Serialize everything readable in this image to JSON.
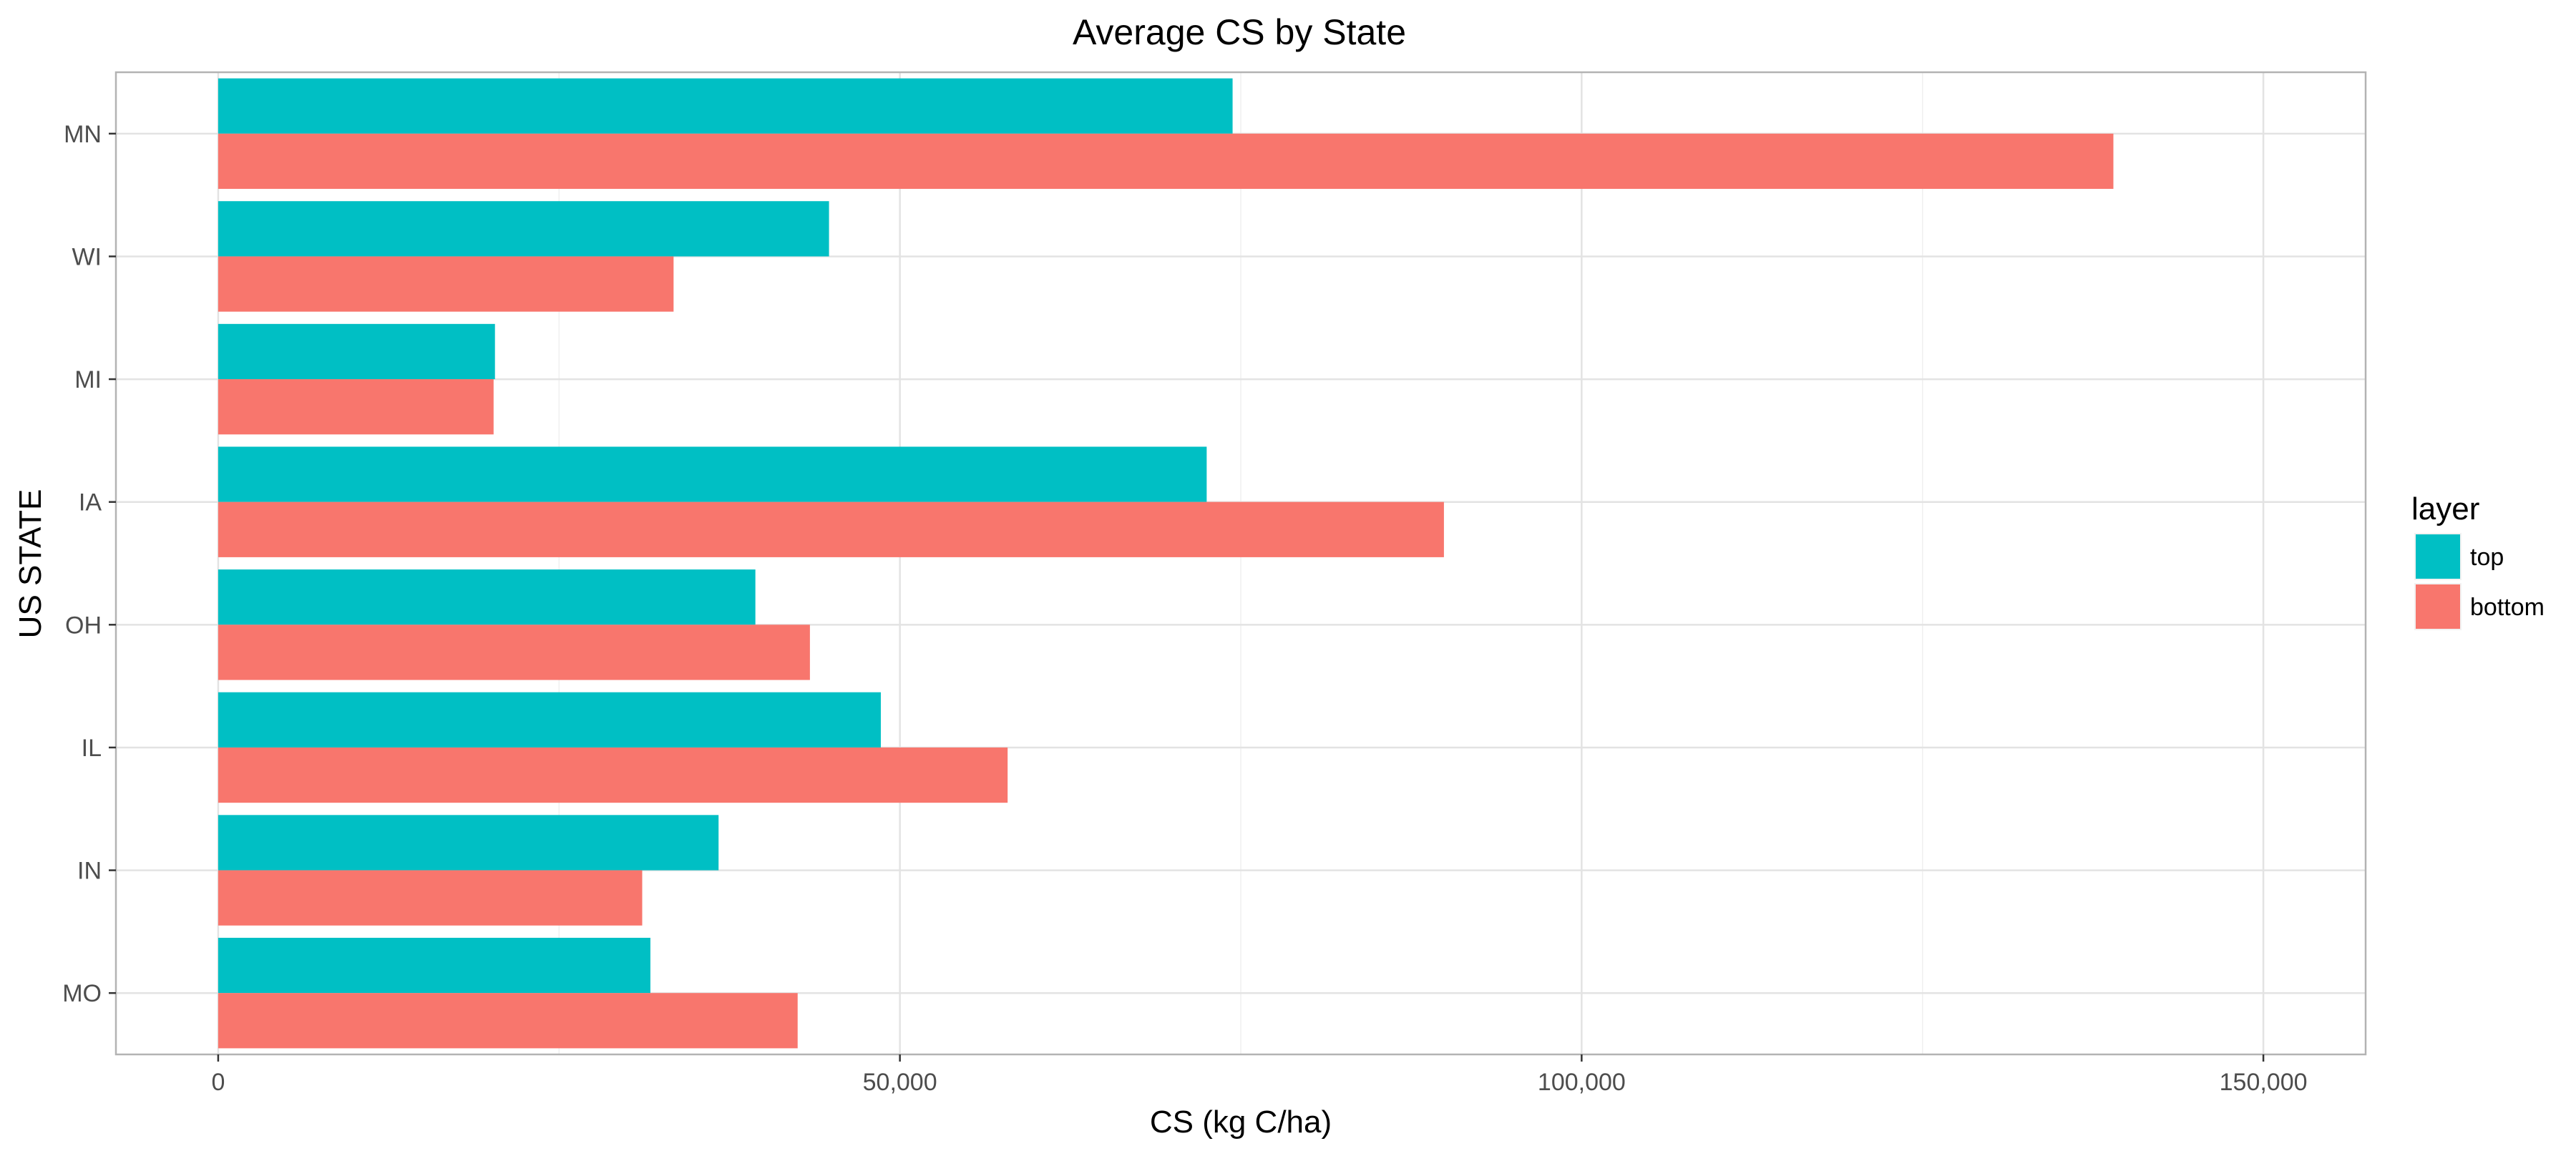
{
  "chart_data": {
    "type": "bar",
    "orientation": "horizontal",
    "title": "Average CS by State",
    "xlabel": "CS (kg C/ha)",
    "ylabel": "US STATE",
    "categories": [
      "MN",
      "WI",
      "MI",
      "IA",
      "OH",
      "IL",
      "IN",
      "MO"
    ],
    "series": [
      {
        "name": "top",
        "color": "#00BFC4",
        "values": [
          74400,
          44800,
          20300,
          72500,
          39400,
          48600,
          36700,
          31700
        ]
      },
      {
        "name": "bottom",
        "color": "#F8766D",
        "values": [
          139000,
          33400,
          20200,
          89900,
          43400,
          57900,
          31100,
          42500
        ]
      }
    ],
    "xlim": [
      -7500,
      157500
    ],
    "x_ticks": [
      0,
      50000,
      100000,
      150000
    ],
    "x_tick_labels": [
      "0",
      "50,000",
      "100,000",
      "150,000"
    ],
    "grid": true,
    "legend": {
      "title": "layer",
      "placement": "right"
    }
  }
}
